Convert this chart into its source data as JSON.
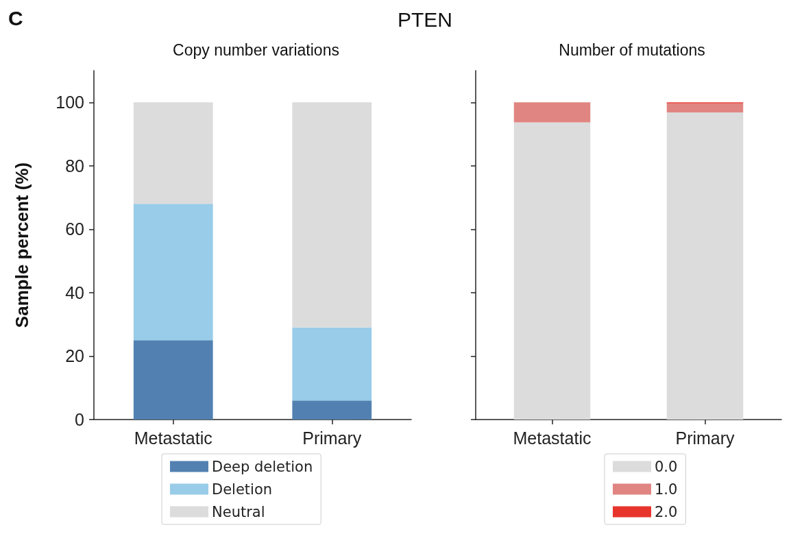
{
  "chart_data": [
    {
      "type": "bar",
      "title": "Copy number variations",
      "ylabel": "Sample percent (%)",
      "annotations": [
        "C",
        "PTEN"
      ],
      "categories": [
        "Metastatic",
        "Primary"
      ],
      "stacked": true,
      "series": [
        {
          "name": "Deep deletion",
          "color": "#5281b1",
          "values": [
            25,
            6
          ]
        },
        {
          "name": "Deletion",
          "color": "#98cce8",
          "values": [
            43,
            23
          ]
        },
        {
          "name": "Neutral",
          "color": "#dcdcdc",
          "values": [
            32,
            71
          ]
        }
      ],
      "ylim": [
        0,
        110
      ],
      "yticks": [
        0,
        20,
        40,
        60,
        80,
        100
      ],
      "grid": false,
      "legend": "bottom"
    },
    {
      "type": "bar",
      "title": "Number of mutations",
      "categories": [
        "Metastatic",
        "Primary"
      ],
      "stacked": true,
      "series": [
        {
          "name": "0.0",
          "color": "#dcdcdc",
          "values": [
            93.7,
            96.8
          ]
        },
        {
          "name": "1.0",
          "color": "#e08581",
          "values": [
            6.3,
            2.9
          ]
        },
        {
          "name": "2.0",
          "color": "#e8352b",
          "values": [
            0,
            0.3
          ]
        }
      ],
      "ylim": [
        0,
        110
      ],
      "yticks": [
        {
          "value": 0,
          "label": null
        },
        {
          "value": 20,
          "label": null
        },
        {
          "value": 40,
          "label": null
        },
        {
          "value": 60,
          "label": null
        },
        {
          "value": 80,
          "label": null
        },
        {
          "value": 100,
          "label": null
        }
      ],
      "tick_labels": "x",
      "grid": false,
      "legend": "bottom"
    }
  ]
}
